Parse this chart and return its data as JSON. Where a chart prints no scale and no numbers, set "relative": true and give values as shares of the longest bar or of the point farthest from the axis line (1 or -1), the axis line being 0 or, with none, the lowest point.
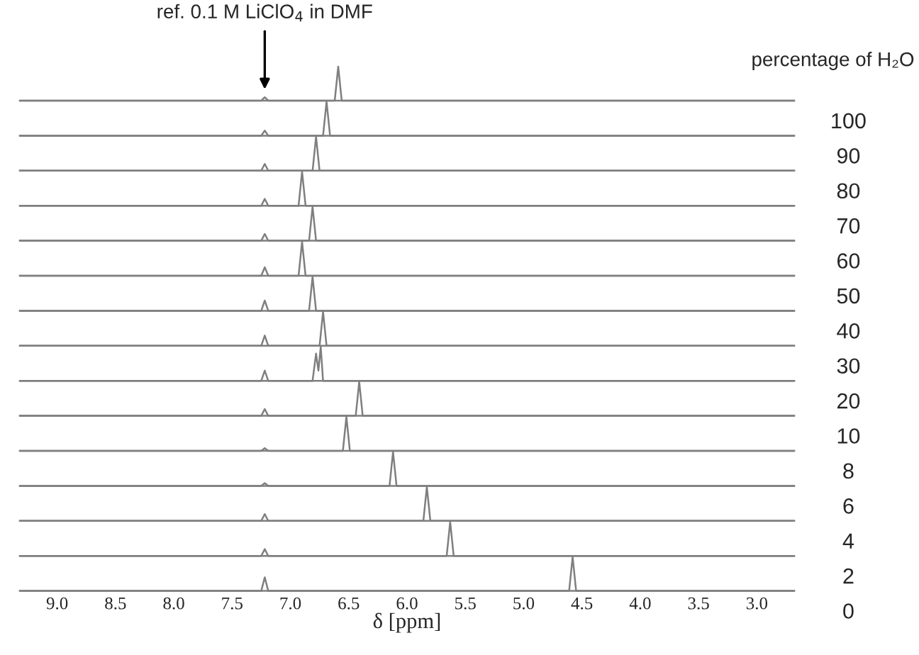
{
  "chart_data": [
    {
      "type": "line",
      "relative": true,
      "xlim": [
        9.32,
        2.68
      ],
      "tick_labels": false,
      "ylabel": "100",
      "annotations": [
        {
          "text": "ref. 0.1 M LiClO$_{4}$ in DMF",
          "x": 7.22,
          "y": 0.1
        },
        "percentage of H₂O"
      ],
      "x": [
        9.32,
        7.25,
        7.22,
        7.19,
        6.62,
        6.59,
        6.56,
        2.68
      ],
      "series": [
        {
          "color": "#7f7f7f",
          "values": [
            0,
            0,
            0.1,
            0,
            0,
            1,
            0,
            0
          ]
        }
      ]
    },
    {
      "type": "line",
      "relative": true,
      "xlim": [
        9.32,
        2.68
      ],
      "tick_labels": false,
      "ylabel": "90",
      "x": [
        9.32,
        7.25,
        7.22,
        7.19,
        6.72,
        6.69,
        6.66,
        2.68
      ],
      "series": [
        {
          "color": "#7f7f7f",
          "values": [
            0,
            0,
            0.15,
            0,
            0,
            1,
            0,
            0
          ]
        }
      ]
    },
    {
      "type": "line",
      "relative": true,
      "xlim": [
        9.32,
        2.68
      ],
      "tick_labels": false,
      "ylabel": "80",
      "x": [
        9.32,
        7.25,
        7.22,
        7.19,
        6.81,
        6.78,
        6.75,
        2.68
      ],
      "series": [
        {
          "color": "#7f7f7f",
          "values": [
            0,
            0,
            0.2,
            0,
            0,
            1,
            0,
            0
          ]
        }
      ]
    },
    {
      "type": "line",
      "relative": true,
      "xlim": [
        9.32,
        2.68
      ],
      "tick_labels": false,
      "ylabel": "70",
      "x": [
        9.32,
        7.25,
        7.22,
        7.19,
        6.93,
        6.9,
        6.87,
        2.68
      ],
      "series": [
        {
          "color": "#7f7f7f",
          "values": [
            0,
            0,
            0.2,
            0,
            0,
            1,
            0,
            0
          ]
        }
      ]
    },
    {
      "type": "line",
      "relative": true,
      "xlim": [
        9.32,
        2.68
      ],
      "tick_labels": false,
      "ylabel": "60",
      "x": [
        9.32,
        7.25,
        7.22,
        7.19,
        6.84,
        6.81,
        6.78,
        2.68
      ],
      "series": [
        {
          "color": "#7f7f7f",
          "values": [
            0,
            0,
            0.2,
            0,
            0,
            1,
            0,
            0
          ]
        }
      ]
    },
    {
      "type": "line",
      "relative": true,
      "xlim": [
        9.32,
        2.68
      ],
      "tick_labels": false,
      "ylabel": "50",
      "x": [
        9.32,
        7.25,
        7.22,
        7.19,
        6.93,
        6.9,
        6.87,
        2.68
      ],
      "series": [
        {
          "color": "#7f7f7f",
          "values": [
            0,
            0,
            0.25,
            0,
            0,
            1,
            0,
            0
          ]
        }
      ]
    },
    {
      "type": "line",
      "relative": true,
      "xlim": [
        9.32,
        2.68
      ],
      "tick_labels": false,
      "ylabel": "40",
      "x": [
        9.32,
        7.25,
        7.22,
        7.19,
        6.84,
        6.81,
        6.78,
        2.68
      ],
      "series": [
        {
          "color": "#7f7f7f",
          "values": [
            0,
            0,
            0.3,
            0,
            0,
            1,
            0,
            0
          ]
        }
      ]
    },
    {
      "type": "line",
      "relative": true,
      "xlim": [
        9.32,
        2.68
      ],
      "tick_labels": false,
      "ylabel": "30",
      "x": [
        9.32,
        7.25,
        7.22,
        7.19,
        6.75,
        6.72,
        6.69,
        2.68
      ],
      "series": [
        {
          "color": "#7f7f7f",
          "values": [
            0,
            0,
            0.3,
            0,
            0,
            1,
            0,
            0
          ]
        }
      ]
    },
    {
      "type": "line",
      "relative": true,
      "xlim": [
        9.32,
        2.68
      ],
      "tick_labels": false,
      "ylabel": "20",
      "x": [
        9.32,
        7.25,
        7.22,
        7.19,
        6.81,
        6.78,
        6.76,
        6.74,
        6.72,
        2.68
      ],
      "series": [
        {
          "color": "#7f7f7f",
          "values": [
            0,
            0,
            0.3,
            0,
            0,
            0.8,
            0.3,
            1,
            0,
            0
          ]
        }
      ]
    },
    {
      "type": "line",
      "relative": true,
      "xlim": [
        9.32,
        2.68
      ],
      "tick_labels": false,
      "ylabel": "10",
      "x": [
        9.32,
        7.25,
        7.22,
        7.19,
        6.44,
        6.41,
        6.38,
        2.68
      ],
      "series": [
        {
          "color": "#7f7f7f",
          "values": [
            0,
            0,
            0.2,
            0,
            0,
            1,
            0,
            0
          ]
        }
      ]
    },
    {
      "type": "line",
      "relative": true,
      "xlim": [
        9.32,
        2.68
      ],
      "tick_labels": false,
      "ylabel": "8",
      "x": [
        9.32,
        7.25,
        7.22,
        7.19,
        6.55,
        6.52,
        6.49,
        2.68
      ],
      "series": [
        {
          "color": "#7f7f7f",
          "values": [
            0,
            0,
            0.08,
            0,
            0,
            1,
            0,
            0
          ]
        }
      ]
    },
    {
      "type": "line",
      "relative": true,
      "xlim": [
        9.32,
        2.68
      ],
      "tick_labels": false,
      "ylabel": "6",
      "x": [
        9.32,
        7.25,
        7.22,
        7.19,
        6.15,
        6.12,
        6.09,
        2.68
      ],
      "series": [
        {
          "color": "#7f7f7f",
          "values": [
            0,
            0,
            0.08,
            0,
            0,
            1,
            0,
            0
          ]
        }
      ]
    },
    {
      "type": "line",
      "relative": true,
      "xlim": [
        9.32,
        2.68
      ],
      "tick_labels": false,
      "ylabel": "4",
      "x": [
        9.32,
        7.25,
        7.22,
        7.19,
        5.86,
        5.83,
        5.8,
        2.68
      ],
      "series": [
        {
          "color": "#7f7f7f",
          "values": [
            0,
            0,
            0.2,
            0,
            0,
            1,
            0,
            0
          ]
        }
      ]
    },
    {
      "type": "line",
      "relative": true,
      "xlim": [
        9.32,
        2.68
      ],
      "tick_labels": false,
      "ylabel": "2",
      "x": [
        9.32,
        7.25,
        7.22,
        7.19,
        5.66,
        5.63,
        5.6,
        2.68
      ],
      "series": [
        {
          "color": "#7f7f7f",
          "values": [
            0,
            0,
            0.2,
            0,
            0,
            1,
            0,
            0
          ]
        }
      ]
    },
    {
      "type": "line",
      "relative": true,
      "xlim": [
        9.32,
        2.68
      ],
      "tick_labels": "x",
      "ylabel": "0",
      "xlabel": "δ [ppm]",
      "xticks": [
        {
          "value": 9,
          "label": "9.0"
        },
        8.5,
        {
          "value": 8,
          "label": "8.0"
        },
        7.5,
        {
          "value": 7,
          "label": "7.0"
        },
        6.5,
        {
          "value": 6,
          "label": "6.0"
        },
        5.5,
        {
          "value": 5,
          "label": "5.0"
        },
        4.5,
        {
          "value": 4,
          "label": "4.0"
        },
        3.5,
        {
          "value": 3,
          "label": "3.0"
        }
      ],
      "x": [
        9.32,
        7.25,
        7.22,
        7.19,
        4.61,
        4.58,
        4.55,
        2.68
      ],
      "series": [
        {
          "color": "#7f7f7f",
          "values": [
            0,
            0,
            0.4,
            0,
            0,
            1,
            0,
            0
          ]
        }
      ]
    }
  ]
}
